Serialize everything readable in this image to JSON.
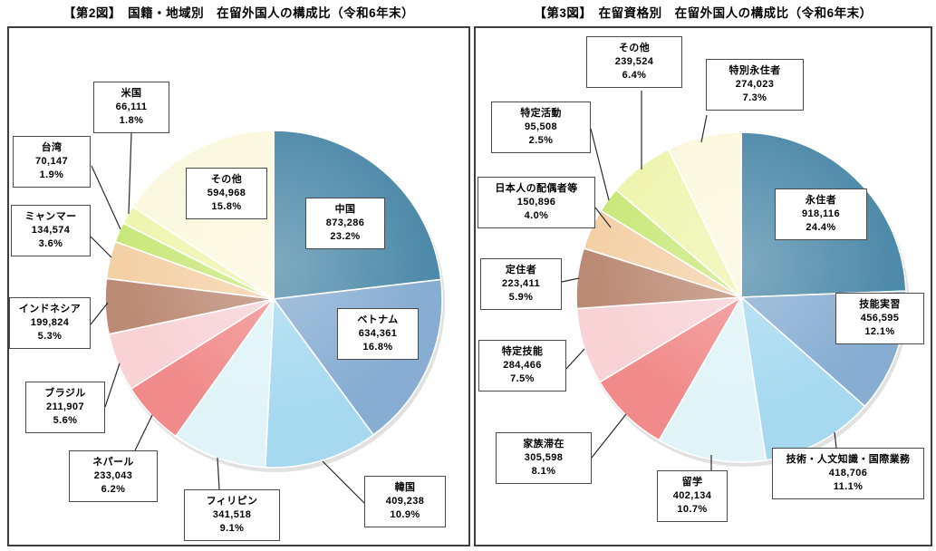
{
  "page": {
    "background": "#ffffff"
  },
  "chart_data": [
    {
      "type": "pie",
      "title": "【第2図】　国籍・地域別　在留外国人の構成比（令和6年末）",
      "legend_position": "none",
      "labels_style": "callout-boxes",
      "slices": [
        {
          "label": "中国",
          "value": 873286,
          "value_label": "873,286",
          "pct": 23.2,
          "pct_label": "23.2%",
          "color": "#4e8aa9"
        },
        {
          "label": "ベトナム",
          "value": 634361,
          "value_label": "634,361",
          "pct": 16.8,
          "pct_label": "16.8%",
          "color": "#87add2"
        },
        {
          "label": "韓国",
          "value": 409238,
          "value_label": "409,238",
          "pct": 10.9,
          "pct_label": "10.9%",
          "color": "#a6d9f0"
        },
        {
          "label": "フィリピン",
          "value": 341518,
          "value_label": "341,518",
          "pct": 9.1,
          "pct_label": "9.1%",
          "color": "#e0f4f8"
        },
        {
          "label": "ネパール",
          "value": 233043,
          "value_label": "233,043",
          "pct": 6.2,
          "pct_label": "6.2%",
          "color": "#f18a8a"
        },
        {
          "label": "ブラジル",
          "value": 211907,
          "value_label": "211,907",
          "pct": 5.6,
          "pct_label": "5.6%",
          "color": "#f8d2d5"
        },
        {
          "label": "インドネシア",
          "value": 199824,
          "value_label": "199,824",
          "pct": 5.3,
          "pct_label": "5.3%",
          "color": "#bb8a74"
        },
        {
          "label": "ミャンマー",
          "value": 134574,
          "value_label": "134,574",
          "pct": 3.6,
          "pct_label": "3.6%",
          "color": "#f4d0a6"
        },
        {
          "label": "台湾",
          "value": 70147,
          "value_label": "70,147",
          "pct": 1.9,
          "pct_label": "1.9%",
          "color": "#c9e87a"
        },
        {
          "label": "米国",
          "value": 66111,
          "value_label": "66,111",
          "pct": 1.8,
          "pct_label": "1.8%",
          "color": "#eef5ad"
        },
        {
          "label": "その他",
          "value": 594968,
          "value_label": "594,968",
          "pct": 15.8,
          "pct_label": "15.8%",
          "color": "#fbf8df"
        }
      ]
    },
    {
      "type": "pie",
      "title": "【第3図】　在留資格別　在留外国人の構成比（令和6年末）",
      "legend_position": "none",
      "labels_style": "callout-boxes",
      "slices": [
        {
          "label": "永住者",
          "value": 918116,
          "value_label": "918,116",
          "pct": 24.4,
          "pct_label": "24.4%",
          "color": "#4e8aa9"
        },
        {
          "label": "技能実習",
          "value": 456595,
          "value_label": "456,595",
          "pct": 12.1,
          "pct_label": "12.1%",
          "color": "#87add2"
        },
        {
          "label": "技術・人文知識・国際業務",
          "value": 418706,
          "value_label": "418,706",
          "pct": 11.1,
          "pct_label": "11.1%",
          "color": "#a6d9f0"
        },
        {
          "label": "留学",
          "value": 402134,
          "value_label": "402,134",
          "pct": 10.7,
          "pct_label": "10.7%",
          "color": "#e0f4f8"
        },
        {
          "label": "家族滞在",
          "value": 305598,
          "value_label": "305,598",
          "pct": 8.1,
          "pct_label": "8.1%",
          "color": "#f18a8a"
        },
        {
          "label": "特定技能",
          "value": 284466,
          "value_label": "284,466",
          "pct": 7.5,
          "pct_label": "7.5%",
          "color": "#f8d2d5"
        },
        {
          "label": "定住者",
          "value": 223411,
          "value_label": "223,411",
          "pct": 5.9,
          "pct_label": "5.9%",
          "color": "#bb8a74"
        },
        {
          "label": "日本人の配偶者等",
          "value": 150896,
          "value_label": "150,896",
          "pct": 4.0,
          "pct_label": "4.0%",
          "color": "#f4d0a6"
        },
        {
          "label": "特定活動",
          "value": 95508,
          "value_label": "95,508",
          "pct": 2.5,
          "pct_label": "2.5%",
          "color": "#c9e87a"
        },
        {
          "label": "その他",
          "value": 239524,
          "value_label": "239,524",
          "pct": 6.4,
          "pct_label": "6.4%",
          "color": "#eef5ad"
        },
        {
          "label": "特別永住者",
          "value": 274023,
          "value_label": "274,023",
          "pct": 7.3,
          "pct_label": "7.3%",
          "color": "#fbf8df"
        }
      ]
    }
  ]
}
